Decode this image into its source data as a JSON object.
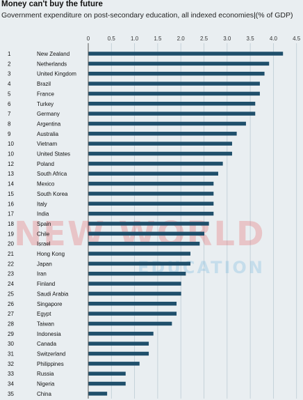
{
  "chart_data": {
    "type": "bar",
    "orientation": "horizontal",
    "title": "Money can't buy the future",
    "subtitle_main": "Government expenditure on post-secondary education, all indexed economies",
    "subtitle_unit": "(% of GDP)",
    "xlim": [
      0,
      4.5
    ],
    "xticks": [
      "0",
      "0.5",
      "1.0",
      "1.5",
      "2.0",
      "2.5",
      "3.0",
      "3.5",
      "4.0",
      "4.5"
    ],
    "grid": true,
    "bar_color": "#1f4f6b",
    "ranks": [
      "1",
      "2",
      "3",
      "4",
      "5",
      "6",
      "7",
      "8",
      "9",
      "10",
      "10",
      "12",
      "13",
      "14",
      "15",
      "16",
      "17",
      "18",
      "19",
      "20",
      "21",
      "22",
      "23",
      "24",
      "25",
      "26",
      "27",
      "28",
      "29",
      "30",
      "31",
      "32",
      "33",
      "34",
      "35"
    ],
    "categories": [
      "New Zealand",
      "Netherlands",
      "United Kingdom",
      "Brazil",
      "France",
      "Turkey",
      "Germany",
      "Argentina",
      "Australia",
      "Vietnam",
      "United States",
      "Poland",
      "South Africa",
      "Mexico",
      "South Korea",
      "Italy",
      "India",
      "Spain",
      "Chile",
      "Israel",
      "Hong Kong",
      "Japan",
      "Iran",
      "Finland",
      "Saudi Arabia",
      "Singapore",
      "Egypt",
      "Taiwan",
      "Indonesia",
      "Canada",
      "Switzerland",
      "Philippines",
      "Russia",
      "Nigeria",
      "China"
    ],
    "values": [
      4.2,
      3.9,
      3.8,
      3.7,
      3.7,
      3.6,
      3.6,
      3.4,
      3.2,
      3.1,
      3.1,
      2.9,
      2.8,
      2.7,
      2.7,
      2.7,
      2.7,
      2.6,
      2.5,
      2.4,
      2.2,
      2.2,
      2.1,
      2.0,
      2.0,
      1.9,
      1.9,
      1.8,
      1.4,
      1.3,
      1.3,
      1.1,
      0.8,
      0.8,
      0.4
    ]
  },
  "watermark": {
    "line1": "NEW WORLD",
    "line2": "EDUCATION"
  }
}
